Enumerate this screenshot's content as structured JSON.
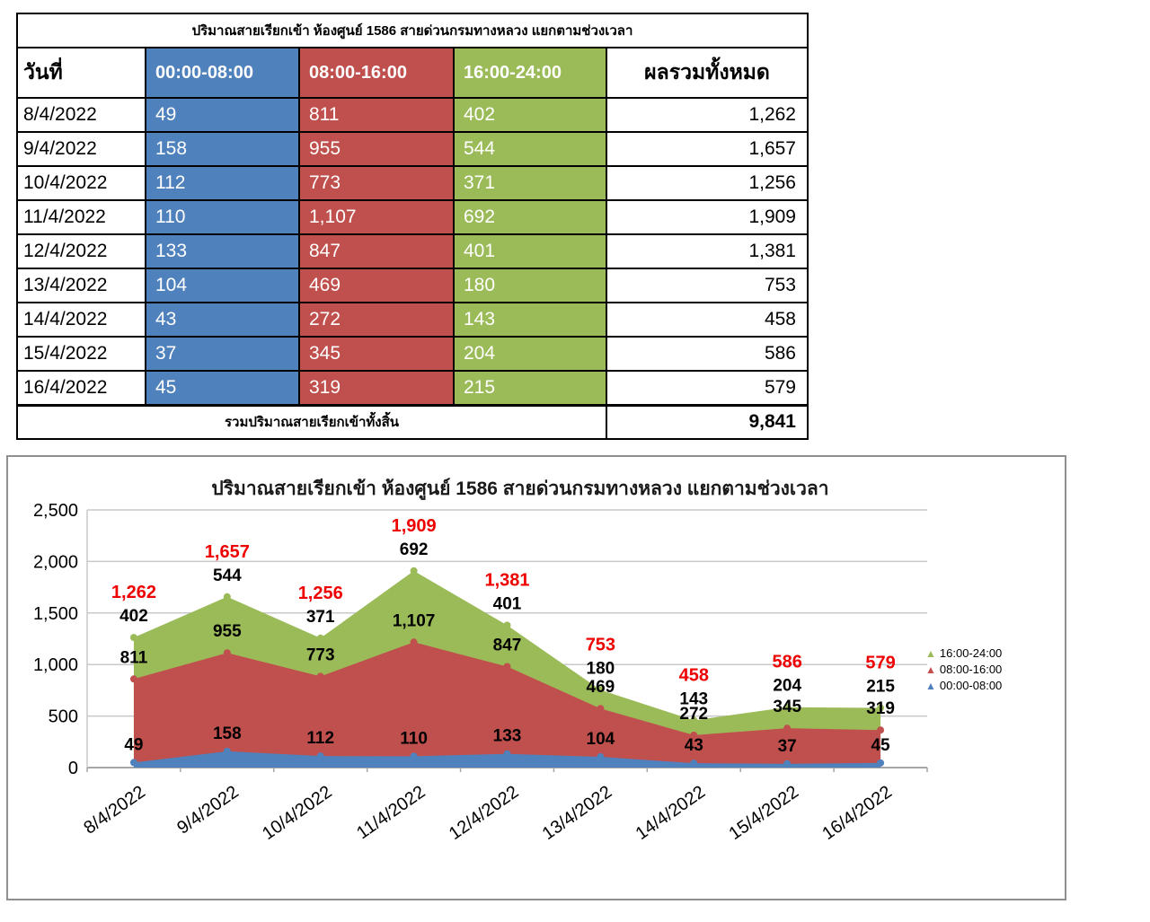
{
  "colors": {
    "blue": "#4F81BD",
    "red": "#C0504D",
    "green": "#9BBB59",
    "total_label": "#EE0000",
    "value_label": "#000000",
    "grid": "#C9C9C9",
    "axis": "#A6A6A6",
    "frame_border": "#8F8F8F"
  },
  "table": {
    "title": "ปริมาณสายเรียกเข้า ห้องศูนย์ 1586 สายด่วนกรมทางหลวง แยกตามช่วงเวลา",
    "columns": [
      "วันที่",
      "00:00-08:00",
      "08:00-16:00",
      "16:00-24:00",
      "ผลรวมทั้งหมด"
    ],
    "footer_label": "รวมปริมาณสายเรียกเข้าทั้งสิ้น",
    "grand_total": 9841
  },
  "chart_data": {
    "type": "area",
    "stacked": true,
    "title": "ปริมาณสายเรียกเข้า ห้องศูนย์ 1586 สายด่วนกรมทางหลวง แยกตามช่วงเวลา",
    "categories": [
      "8/4/2022",
      "9/4/2022",
      "10/4/2022",
      "11/4/2022",
      "12/4/2022",
      "13/4/2022",
      "14/4/2022",
      "15/4/2022",
      "16/4/2022"
    ],
    "series": [
      {
        "name": "00:00-08:00",
        "color": "#4F81BD",
        "values": [
          49,
          158,
          112,
          110,
          133,
          104,
          43,
          37,
          45
        ]
      },
      {
        "name": "08:00-16:00",
        "color": "#C0504D",
        "values": [
          811,
          955,
          773,
          1107,
          847,
          469,
          272,
          345,
          319
        ]
      },
      {
        "name": "16:00-24:00",
        "color": "#9BBB59",
        "values": [
          402,
          544,
          371,
          692,
          401,
          180,
          143,
          204,
          215
        ]
      }
    ],
    "totals": [
      1262,
      1657,
      1256,
      1909,
      1381,
      753,
      458,
      586,
      579
    ],
    "ylim": [
      0,
      2500
    ],
    "y_ticks": [
      0,
      500,
      1000,
      1500,
      2000,
      2500
    ],
    "grid": true,
    "legend_position": "right",
    "legend_order": [
      "16:00-24:00",
      "08:00-16:00",
      "00:00-08:00"
    ]
  }
}
